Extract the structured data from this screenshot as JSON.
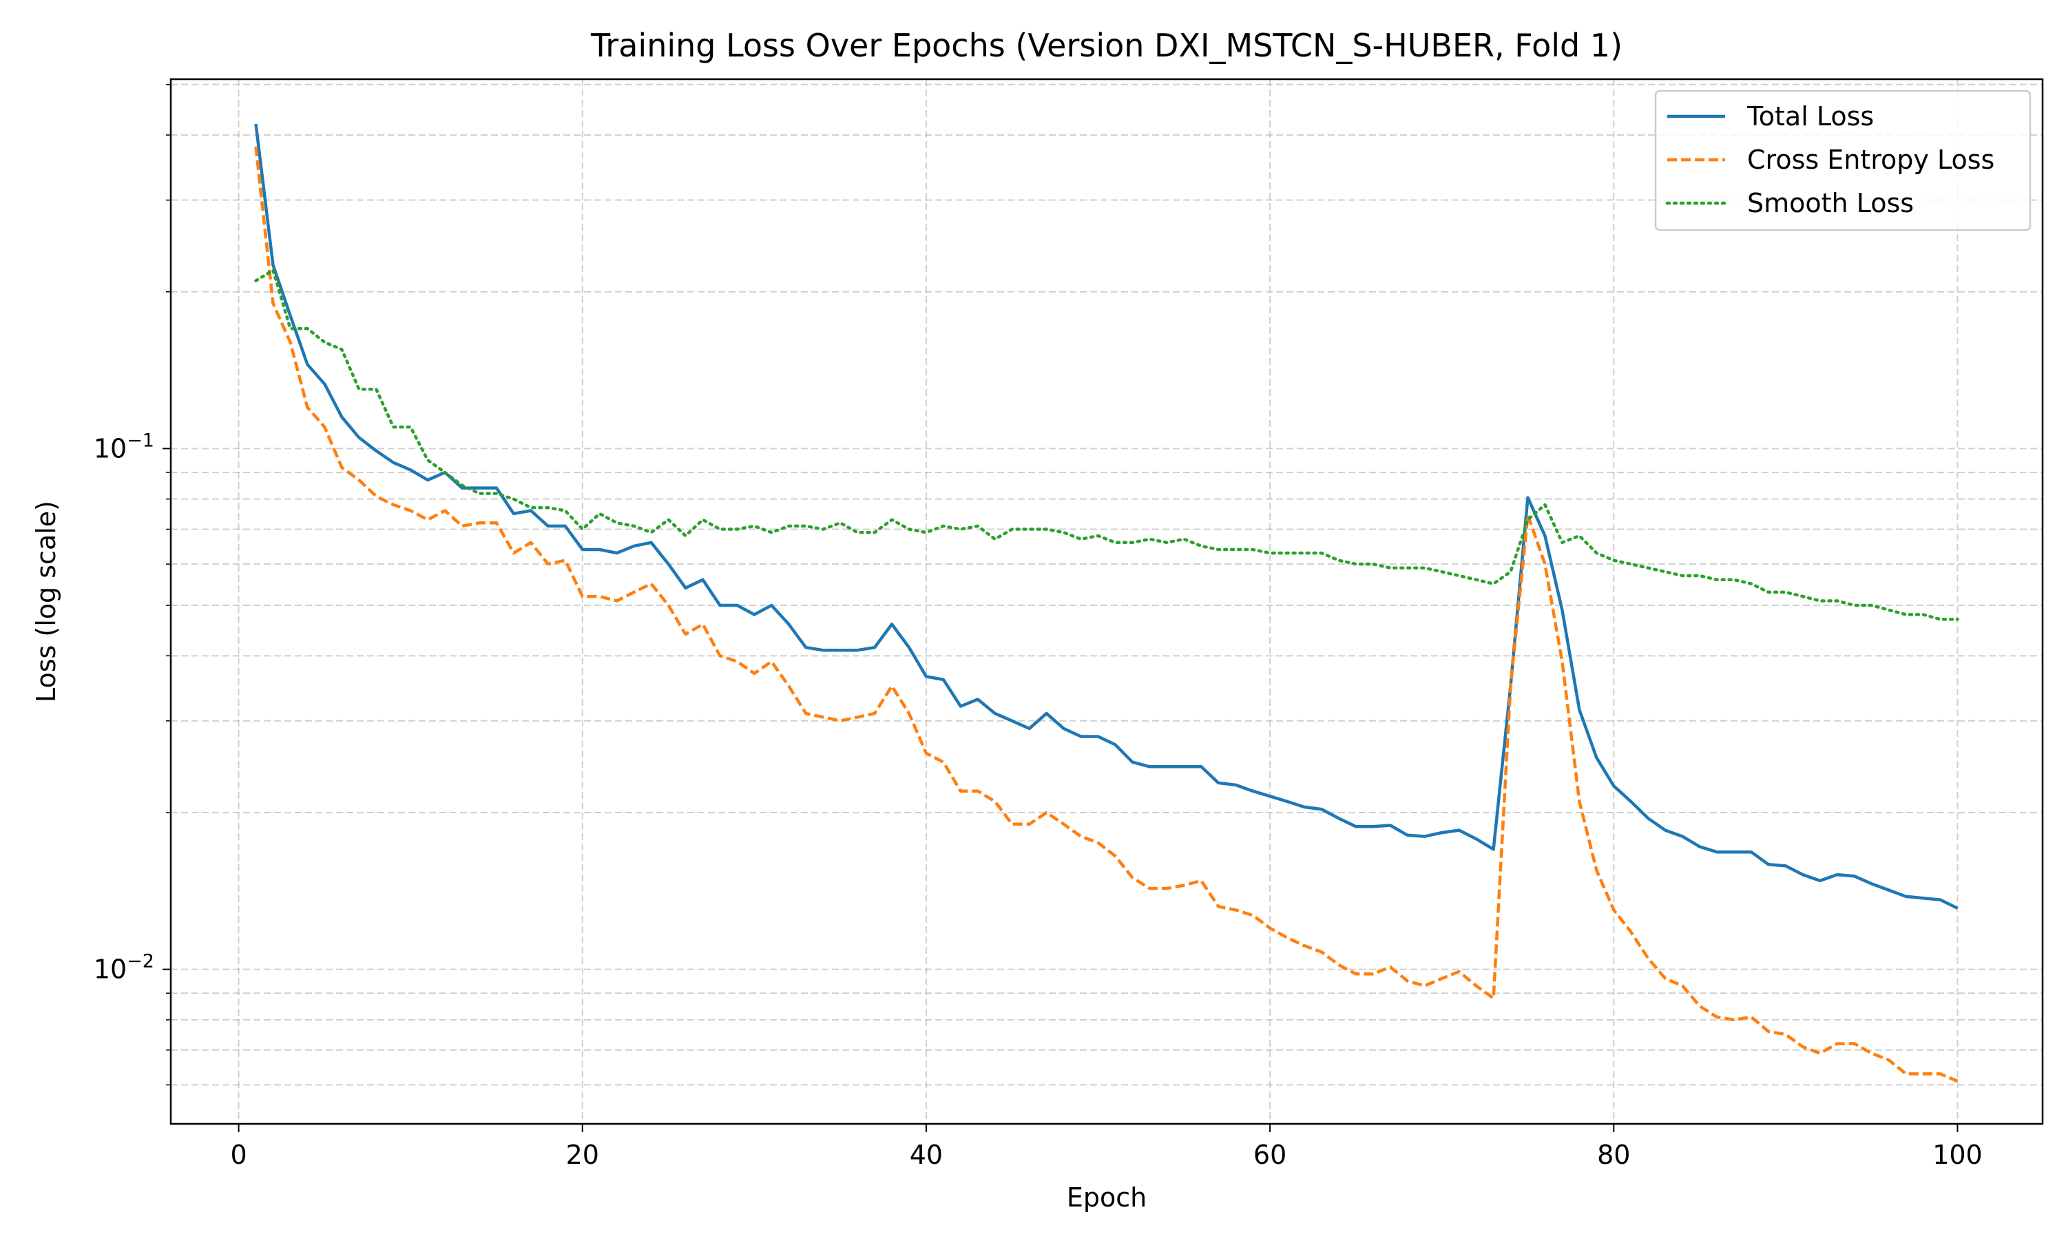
{
  "chart_data": {
    "type": "line",
    "title": "Training Loss Over Epochs (Version DXI_MSTCN_S-HUBER, Fold 1)",
    "xlabel": "Epoch",
    "ylabel": "Loss (log scale)",
    "xlim": [
      -3.95,
      104.95
    ],
    "ylim": [
      0.00505,
      0.512
    ],
    "yscale": "log",
    "grid": true,
    "legend_position": "top-right",
    "x_ticks": [
      {
        "value": 0,
        "label": "0"
      },
      {
        "value": 20,
        "label": "20"
      },
      {
        "value": 40,
        "label": "40"
      },
      {
        "value": 60,
        "label": "60"
      },
      {
        "value": 80,
        "label": "80"
      },
      {
        "value": 100,
        "label": "100"
      }
    ],
    "y_ticks": [
      {
        "value": 0.01,
        "base": "10",
        "exponent": "−2"
      },
      {
        "value": 0.1,
        "base": "10",
        "exponent": "−1"
      }
    ],
    "x": [
      1,
      2,
      3,
      4,
      5,
      6,
      7,
      8,
      9,
      10,
      11,
      12,
      13,
      14,
      15,
      16,
      17,
      18,
      19,
      20,
      21,
      22,
      23,
      24,
      25,
      26,
      27,
      28,
      29,
      30,
      31,
      32,
      33,
      34,
      35,
      36,
      37,
      38,
      39,
      40,
      41,
      42,
      43,
      44,
      45,
      46,
      47,
      48,
      49,
      50,
      51,
      52,
      53,
      54,
      55,
      56,
      57,
      58,
      59,
      60,
      61,
      62,
      63,
      64,
      65,
      66,
      67,
      68,
      69,
      70,
      71,
      72,
      73,
      74,
      75,
      76,
      77,
      78,
      79,
      80,
      81,
      82,
      83,
      84,
      85,
      86,
      87,
      88,
      89,
      90,
      91,
      92,
      93,
      94,
      95,
      96,
      97,
      98,
      99,
      100
    ],
    "series": [
      {
        "name": "Total Loss",
        "color": "#1f77b4",
        "style": "solid",
        "values": [
          0.42,
          0.225,
          0.18,
          0.145,
          0.133,
          0.115,
          0.105,
          0.099,
          0.094,
          0.091,
          0.087,
          0.09,
          0.084,
          0.084,
          0.084,
          0.075,
          0.076,
          0.071,
          0.071,
          0.064,
          0.064,
          0.063,
          0.065,
          0.066,
          0.06,
          0.054,
          0.056,
          0.05,
          0.05,
          0.048,
          0.05,
          0.046,
          0.0415,
          0.041,
          0.041,
          0.041,
          0.0415,
          0.046,
          0.0415,
          0.0365,
          0.036,
          0.032,
          0.033,
          0.031,
          0.03,
          0.029,
          0.031,
          0.029,
          0.028,
          0.028,
          0.027,
          0.025,
          0.0245,
          0.0245,
          0.0245,
          0.0245,
          0.0228,
          0.0226,
          0.022,
          0.0215,
          0.021,
          0.0205,
          0.0203,
          0.0195,
          0.0188,
          0.0188,
          0.0189,
          0.0181,
          0.018,
          0.0183,
          0.0185,
          0.0178,
          0.017,
          0.035,
          0.0805,
          0.068,
          0.049,
          0.0315,
          0.0255,
          0.0225,
          0.021,
          0.0195,
          0.0185,
          0.018,
          0.0172,
          0.0168,
          0.0168,
          0.0168,
          0.0159,
          0.0158,
          0.0152,
          0.0148,
          0.0152,
          0.0151,
          0.0146,
          0.0142,
          0.0138,
          0.0137,
          0.0136,
          0.0131
        ]
      },
      {
        "name": "Cross Entropy Loss",
        "color": "#ff7f0e",
        "style": "dashed",
        "values": [
          0.38,
          0.19,
          0.16,
          0.12,
          0.11,
          0.092,
          0.087,
          0.081,
          0.078,
          0.076,
          0.073,
          0.076,
          0.071,
          0.072,
          0.072,
          0.063,
          0.066,
          0.06,
          0.061,
          0.052,
          0.052,
          0.051,
          0.053,
          0.055,
          0.05,
          0.044,
          0.046,
          0.04,
          0.039,
          0.037,
          0.039,
          0.035,
          0.031,
          0.0305,
          0.03,
          0.0305,
          0.031,
          0.035,
          0.031,
          0.026,
          0.025,
          0.022,
          0.022,
          0.021,
          0.019,
          0.019,
          0.02,
          0.019,
          0.018,
          0.0175,
          0.0165,
          0.015,
          0.0143,
          0.0143,
          0.0145,
          0.0148,
          0.0132,
          0.013,
          0.0127,
          0.012,
          0.0115,
          0.0111,
          0.0108,
          0.0102,
          0.0098,
          0.0098,
          0.0101,
          0.0095,
          0.0093,
          0.0096,
          0.0099,
          0.0093,
          0.0088,
          0.035,
          0.0745,
          0.06,
          0.039,
          0.021,
          0.0155,
          0.013,
          0.0118,
          0.0105,
          0.0096,
          0.0093,
          0.0085,
          0.0081,
          0.008,
          0.0081,
          0.0076,
          0.0075,
          0.0071,
          0.0069,
          0.0072,
          0.0072,
          0.0069,
          0.0067,
          0.0063,
          0.0063,
          0.0063,
          0.0061
        ]
      },
      {
        "name": "Smooth Loss",
        "color": "#2ca02c",
        "style": "dotted",
        "values": [
          0.21,
          0.22,
          0.17,
          0.17,
          0.16,
          0.155,
          0.13,
          0.13,
          0.11,
          0.11,
          0.095,
          0.09,
          0.085,
          0.082,
          0.082,
          0.08,
          0.077,
          0.077,
          0.076,
          0.07,
          0.075,
          0.072,
          0.071,
          0.069,
          0.073,
          0.068,
          0.073,
          0.07,
          0.07,
          0.071,
          0.069,
          0.071,
          0.071,
          0.07,
          0.072,
          0.069,
          0.069,
          0.073,
          0.07,
          0.069,
          0.071,
          0.07,
          0.071,
          0.067,
          0.07,
          0.07,
          0.07,
          0.069,
          0.067,
          0.068,
          0.066,
          0.066,
          0.067,
          0.066,
          0.067,
          0.065,
          0.064,
          0.064,
          0.064,
          0.063,
          0.063,
          0.063,
          0.063,
          0.061,
          0.06,
          0.06,
          0.059,
          0.059,
          0.059,
          0.058,
          0.057,
          0.056,
          0.055,
          0.058,
          0.073,
          0.078,
          0.066,
          0.068,
          0.063,
          0.061,
          0.06,
          0.059,
          0.058,
          0.057,
          0.057,
          0.056,
          0.056,
          0.055,
          0.053,
          0.053,
          0.052,
          0.051,
          0.051,
          0.05,
          0.05,
          0.049,
          0.048,
          0.048,
          0.047,
          0.047
        ]
      }
    ]
  }
}
